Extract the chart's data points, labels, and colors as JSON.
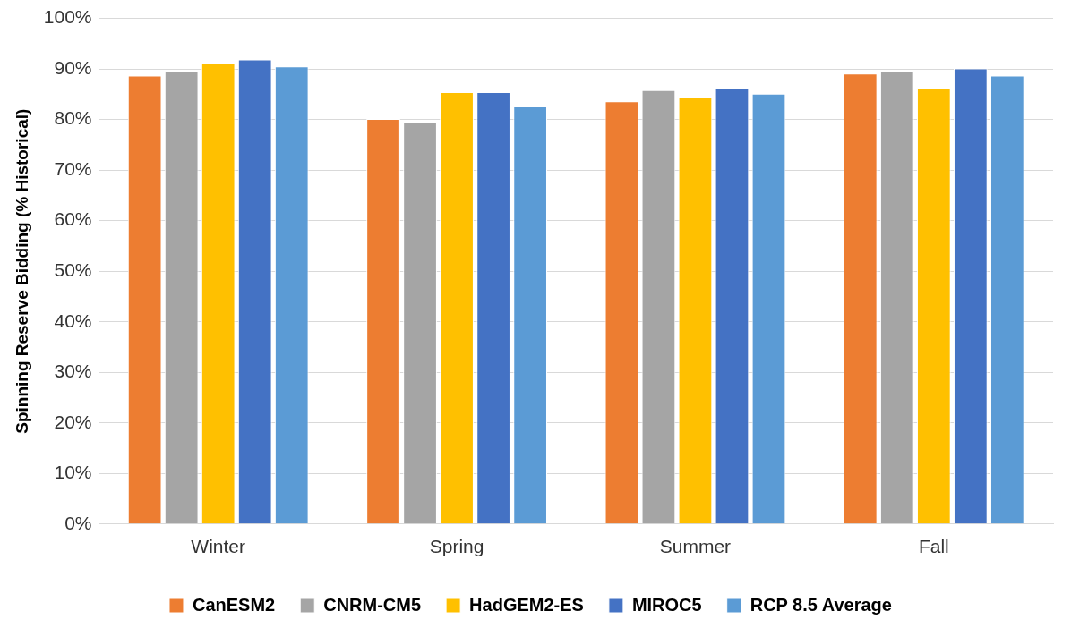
{
  "chart_data": {
    "type": "bar",
    "ylabel": "Spinning Reserve Bidding (% Historical)",
    "categories": [
      "Winter",
      "Spring",
      "Summer",
      "Fall"
    ],
    "series": [
      {
        "name": "CanESM2",
        "color": "#ed7d31",
        "values": [
          88.7,
          80.1,
          83.6,
          89.1
        ]
      },
      {
        "name": "CNRM-CM5",
        "color": "#a5a5a5",
        "values": [
          89.5,
          79.5,
          85.8,
          89.5
        ]
      },
      {
        "name": "HadGEM2-ES",
        "color": "#ffc000",
        "values": [
          91.2,
          85.4,
          84.4,
          86.2
        ]
      },
      {
        "name": "MIROC5",
        "color": "#4472c4",
        "values": [
          91.9,
          85.4,
          86.2,
          90.1
        ]
      },
      {
        "name": "RCP 8.5 Average",
        "color": "#5b9bd5",
        "values": [
          90.5,
          82.6,
          85.1,
          88.7
        ]
      }
    ],
    "ylim": [
      0,
      100
    ],
    "yticks": [
      {
        "value": 0,
        "label": "0%"
      },
      {
        "value": 10,
        "label": "10%"
      },
      {
        "value": 20,
        "label": "20%"
      },
      {
        "value": 30,
        "label": "30%"
      },
      {
        "value": 40,
        "label": "40%"
      },
      {
        "value": 50,
        "label": "50%"
      },
      {
        "value": 60,
        "label": "60%"
      },
      {
        "value": 70,
        "label": "70%"
      },
      {
        "value": 80,
        "label": "80%"
      },
      {
        "value": 90,
        "label": "90%"
      },
      {
        "value": 100,
        "label": "100%"
      }
    ],
    "grid": "y",
    "legend": "bottom"
  }
}
